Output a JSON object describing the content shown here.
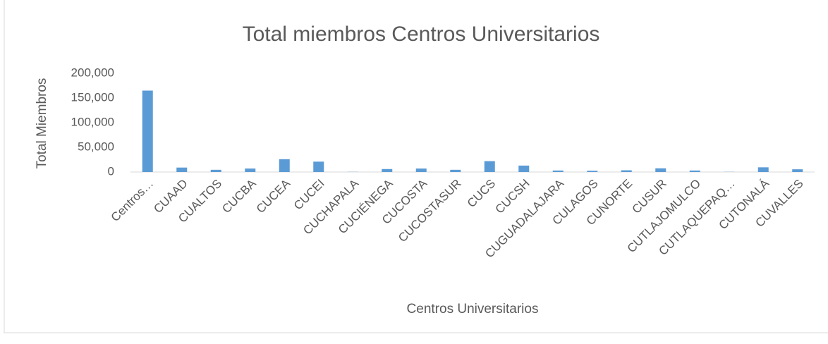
{
  "chart_data": {
    "type": "bar",
    "title": "Total miembros Centros Universitarios",
    "x_label": "Centros Universitarios",
    "y_label": "Total Miembros",
    "categories": [
      "Centros…",
      "CUAAD",
      "CUALTOS",
      "CUCBA",
      "CUCEA",
      "CUCEI",
      "CUCHAPALA",
      "CUCIÉNEGA",
      "CUCOSTA",
      "CUCOSTASUR",
      "CUCS",
      "CUCSH",
      "CUGUADALAJARA",
      "CULAGOS",
      "CUNORTE",
      "CUSUR",
      "CUTLAJOMULCO",
      "CUTLAQUEPAQ…",
      "CUTONALÁ",
      "CUVALLES"
    ],
    "values": [
      165000,
      9000,
      4500,
      7000,
      26000,
      21000,
      300,
      6000,
      7000,
      4500,
      22000,
      13000,
      3000,
      2500,
      3500,
      7500,
      3000,
      300,
      9500,
      5500
    ],
    "color": "#5b9bd5",
    "ylim": [
      0,
      200000
    ],
    "yticks": [
      0,
      {
        "value": 50000,
        "label": "50,000"
      },
      {
        "value": 100000,
        "label": "100,000"
      },
      {
        "value": 150000,
        "label": "150,000"
      },
      {
        "value": 200000,
        "label": "200,000"
      }
    ],
    "grid": false
  }
}
